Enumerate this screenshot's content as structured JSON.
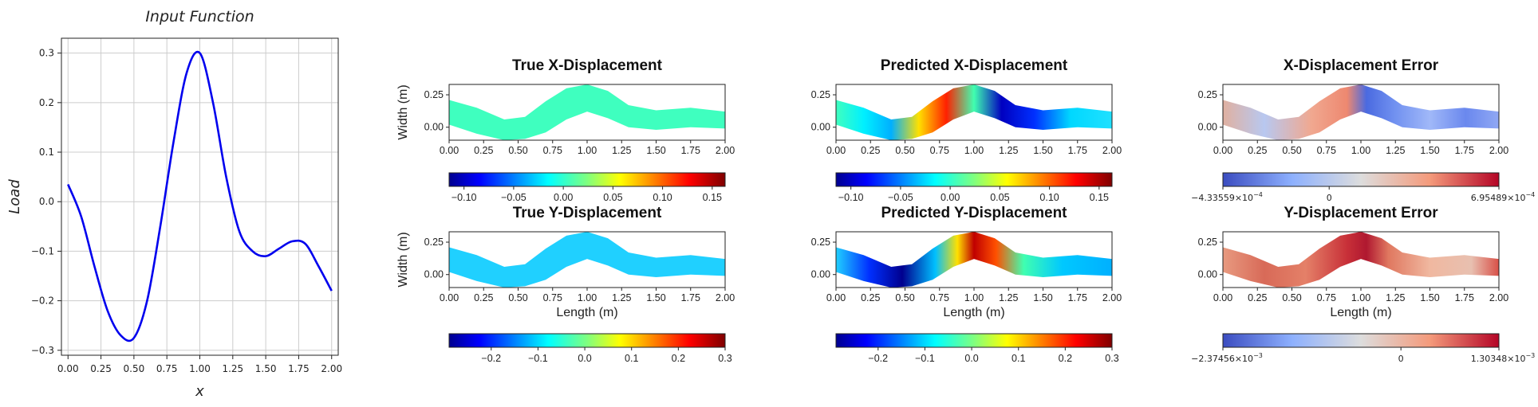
{
  "chart_data": [
    {
      "type": "line",
      "title": "Input Function",
      "xlabel": "x",
      "ylabel": "Load",
      "xlim": [
        -0.05,
        2.05
      ],
      "ylim": [
        -0.31,
        0.33
      ],
      "xticks": [
        "0.00",
        "0.25",
        "0.50",
        "0.75",
        "1.00",
        "1.25",
        "1.50",
        "1.75",
        "2.00"
      ],
      "yticks": [
        "0.3",
        "0.2",
        "0.1",
        "0.0",
        "−0.1",
        "−0.2",
        "−0.3"
      ],
      "grid": true,
      "series": [
        {
          "color": "#0000ee",
          "x": [
            0.0,
            0.1,
            0.2,
            0.3,
            0.4,
            0.5,
            0.6,
            0.7,
            0.8,
            0.9,
            1.0,
            1.1,
            1.2,
            1.3,
            1.4,
            1.5,
            1.6,
            1.7,
            1.8,
            1.9,
            2.0
          ],
          "y": [
            0.035,
            -0.03,
            -0.13,
            -0.22,
            -0.27,
            -0.275,
            -0.2,
            -0.05,
            0.12,
            0.26,
            0.3,
            0.2,
            0.05,
            -0.06,
            -0.1,
            -0.11,
            -0.095,
            -0.08,
            -0.085,
            -0.13,
            -0.18
          ]
        }
      ]
    },
    {
      "type": "heatmap",
      "title": "True X-Displacement",
      "ylabel": "Width (m)",
      "xticks": [
        "0.00",
        "0.25",
        "0.50",
        "0.75",
        "1.00",
        "1.25",
        "1.50",
        "1.75",
        "2.00"
      ],
      "yticks": [
        "0.25",
        "0.00"
      ],
      "colormap": "jet",
      "colorbar_ticks": [
        "−0.10",
        "−0.05",
        "0.00",
        "0.05",
        "0.10",
        "0.15"
      ]
    },
    {
      "type": "heatmap",
      "title": "Predicted X-Displacement",
      "xticks": [
        "0.00",
        "0.25",
        "0.50",
        "0.75",
        "1.00",
        "1.25",
        "1.50",
        "1.75",
        "2.00"
      ],
      "yticks": [
        "0.25",
        "0.00"
      ],
      "colormap": "jet",
      "colorbar_ticks": [
        "−0.10",
        "−0.05",
        "0.00",
        "0.05",
        "0.10",
        "0.15"
      ]
    },
    {
      "type": "heatmap",
      "title": "X-Displacement Error",
      "xticks": [
        "0.00",
        "0.25",
        "0.50",
        "0.75",
        "1.00",
        "1.25",
        "1.50",
        "1.75",
        "2.00"
      ],
      "yticks": [
        "0.25",
        "0.00"
      ],
      "colormap": "coolwarm",
      "colorbar_ticks": [
        {
          "mant": "−4.33559",
          "exp": "−4"
        },
        {
          "plain": "0"
        },
        {
          "mant": "6.95489",
          "exp": "−4"
        }
      ]
    },
    {
      "type": "heatmap",
      "title": "True Y-Displacement",
      "xlabel": "Length (m)",
      "ylabel": "Width (m)",
      "xticks": [
        "0.00",
        "0.25",
        "0.50",
        "0.75",
        "1.00",
        "1.25",
        "1.50",
        "1.75",
        "2.00"
      ],
      "yticks": [
        "0.25",
        "0.00"
      ],
      "colormap": "jet",
      "colorbar_ticks": [
        "−0.2",
        "−0.1",
        "0.0",
        "0.1",
        "0.2",
        "0.3"
      ]
    },
    {
      "type": "heatmap",
      "title": "Predicted Y-Displacement",
      "xlabel": "Length (m)",
      "xticks": [
        "0.00",
        "0.25",
        "0.50",
        "0.75",
        "1.00",
        "1.25",
        "1.50",
        "1.75",
        "2.00"
      ],
      "yticks": [
        "0.25",
        "0.00"
      ],
      "colormap": "jet",
      "colorbar_ticks": [
        "−0.2",
        "−0.1",
        "0.0",
        "0.1",
        "0.2",
        "0.3"
      ]
    },
    {
      "type": "heatmap",
      "title": "Y-Displacement Error",
      "xlabel": "Length (m)",
      "xticks": [
        "0.00",
        "0.25",
        "0.50",
        "0.75",
        "1.00",
        "1.25",
        "1.50",
        "1.75",
        "2.00"
      ],
      "yticks": [
        "0.25",
        "0.00"
      ],
      "colormap": "coolwarm",
      "colorbar_ticks": [
        {
          "mant": "−2.37456",
          "exp": "−3"
        },
        {
          "plain": "0"
        },
        {
          "mant": "1.30348",
          "exp": "−3"
        }
      ]
    }
  ]
}
